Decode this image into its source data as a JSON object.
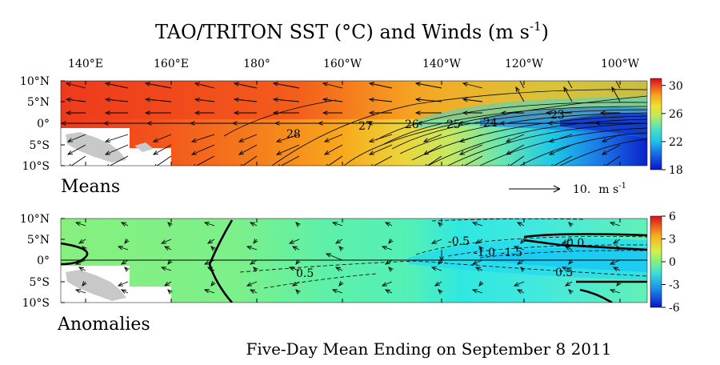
{
  "title": "TAO/TRITON SST (°C) and Winds (m s⁻¹)",
  "title_parts": {
    "main": "TAO/TRITON SST (°C) and Winds (m s",
    "exp": "-1",
    "close": ")"
  },
  "footer": "Five-Day Mean Ending on September 8 2011",
  "lon_labels": [
    "140°E",
    "160°E",
    "180°",
    "160°W",
    "140°W",
    "120°W",
    "100°W"
  ],
  "lat_labels": [
    "10°N",
    "5°N",
    "0°",
    "5°S",
    "10°S"
  ],
  "chart_data": [
    {
      "type": "heatmap",
      "panel": "Means",
      "label": "Means",
      "x_range": [
        "137°E",
        "95°W"
      ],
      "y_range": [
        "10°S",
        "10°N"
      ],
      "colorbar": {
        "min": 18,
        "max": 31,
        "ticks": [
          "30",
          "26",
          "22",
          "18"
        ]
      },
      "contour_labels": [
        "28",
        "27",
        "26",
        "25",
        "24",
        "23"
      ],
      "wind_reference": {
        "value": "10.",
        "units": "m s",
        "exp": "-1"
      }
    },
    {
      "type": "heatmap",
      "panel": "Anomalies",
      "label": "Anomalies",
      "x_range": [
        "137°E",
        "95°W"
      ],
      "y_range": [
        "10°S",
        "10°N"
      ],
      "colorbar": {
        "min": -6,
        "max": 6,
        "ticks": [
          "6",
          "3",
          "0",
          "-3",
          "-6"
        ]
      },
      "contour_labels": [
        "-0.5",
        "-1.0",
        "-1.5",
        "0.0",
        "0.5",
        "0.5"
      ]
    }
  ]
}
